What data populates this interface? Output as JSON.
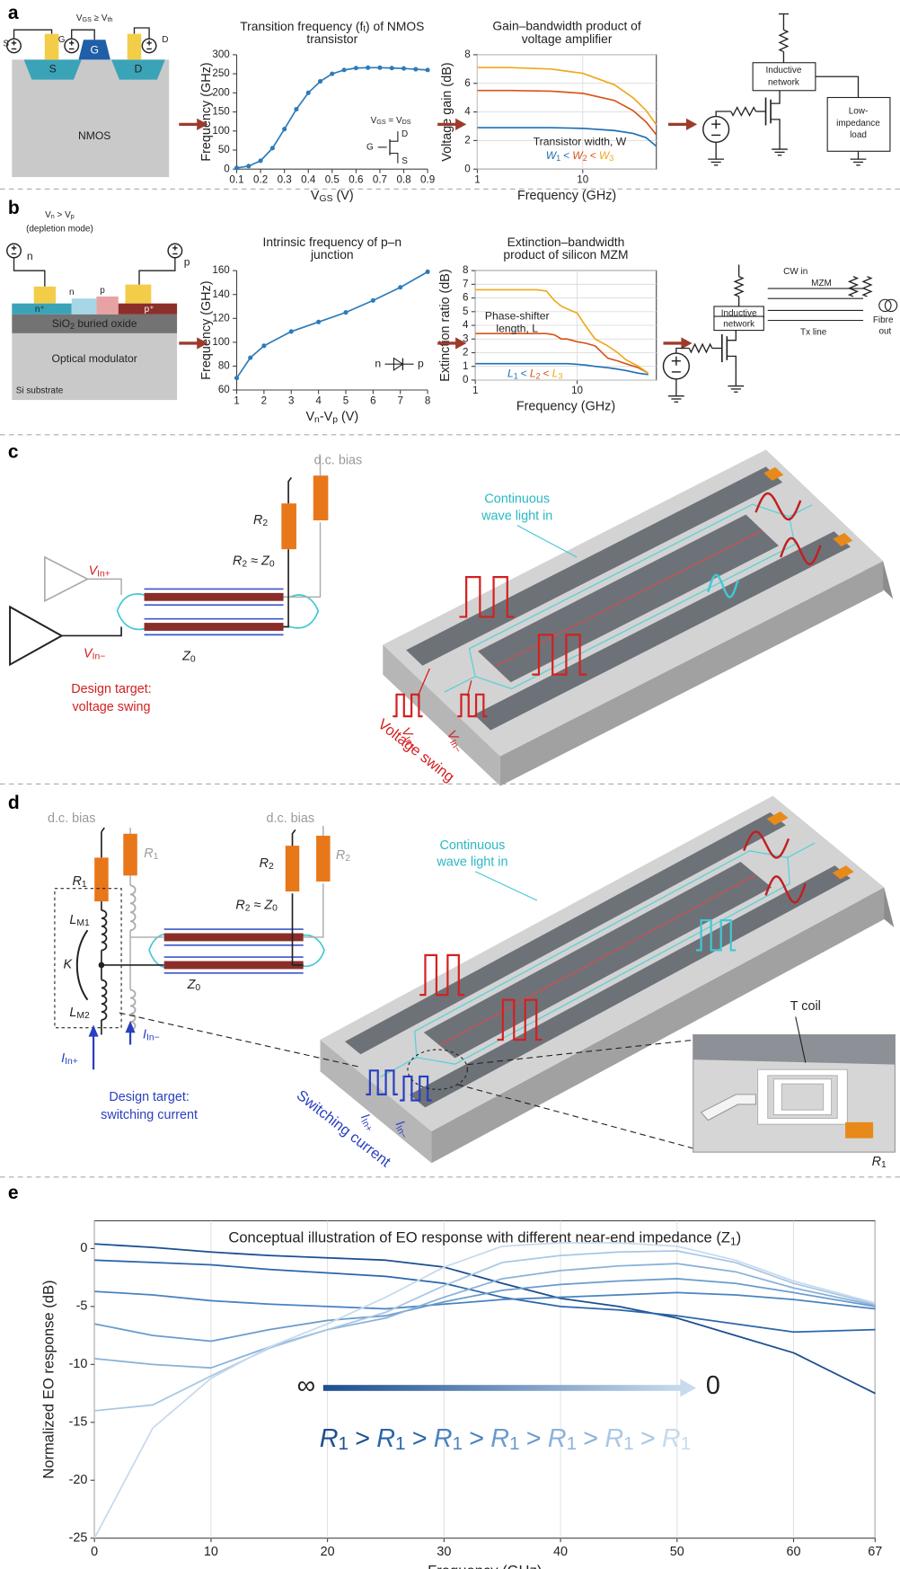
{
  "panel_labels": [
    "a",
    "b",
    "c",
    "d",
    "e"
  ],
  "chart_data": [
    {
      "type": "line",
      "title": [
        [
          "Transition frequency (f",
          "t",
          ") of NMOS"
        ],
        "transistor"
      ],
      "xlabel": [
        "V",
        "GS",
        " (V)"
      ],
      "ylabel": "Frequency (GHz)",
      "x": [
        0.1,
        0.15,
        0.2,
        0.25,
        0.3,
        0.35,
        0.4,
        0.45,
        0.5,
        0.55,
        0.6,
        0.65,
        0.7,
        0.75,
        0.8,
        0.85,
        0.9
      ],
      "values": [
        3,
        8,
        22,
        55,
        105,
        157,
        200,
        230,
        250,
        260,
        265,
        266,
        266,
        265,
        264,
        262,
        260
      ],
      "color": "#2b7bba",
      "markers": true,
      "xlim": [
        0.1,
        0.9
      ],
      "xticks": [
        0.1,
        0.2,
        0.3,
        0.4,
        0.5,
        0.6,
        0.7,
        0.8,
        0.9
      ],
      "ylim": [
        0,
        300
      ],
      "yticks": [
        0,
        50,
        100,
        150,
        200,
        250,
        300
      ],
      "annotations": [
        [
          "V",
          "GS",
          " = V",
          "DS"
        ],
        "D",
        "G",
        "S"
      ]
    },
    {
      "type": "line",
      "title": [
        "Gain–bandwidth product of",
        "voltage amplifier"
      ],
      "xlabel": "Frequency (GHz)",
      "ylabel": "Voltage gain (dB)",
      "xscale": "log",
      "x": [
        1,
        2,
        5,
        10,
        20,
        30,
        40,
        50
      ],
      "xlim": [
        1,
        50
      ],
      "xticks": [
        1,
        10
      ],
      "ylim": [
        0,
        8
      ],
      "yticks": [
        0,
        2,
        4,
        6,
        8
      ],
      "grid": true,
      "legend_title": "Transistor width, W",
      "legend_separator": "<",
      "series": [
        {
          "name": [
            "W",
            "1"
          ],
          "color": "#1f6fb5",
          "values": [
            2.9,
            2.9,
            2.9,
            2.85,
            2.7,
            2.5,
            2.2,
            1.6
          ]
        },
        {
          "name": [
            "W",
            "2"
          ],
          "color": "#d95319",
          "values": [
            5.5,
            5.5,
            5.45,
            5.3,
            4.8,
            4.1,
            3.3,
            2.4
          ]
        },
        {
          "name": [
            "W",
            "3"
          ],
          "color": "#f0a81c",
          "values": [
            7.1,
            7.1,
            7.0,
            6.7,
            5.9,
            5.0,
            4.1,
            3.1
          ]
        }
      ]
    },
    {
      "type": "line",
      "title": [
        "Intrinsic frequency of p–n",
        "junction"
      ],
      "xlabel": [
        "V",
        "n",
        "-V",
        "p",
        " (V)"
      ],
      "ylabel": "Frequency (GHz)",
      "x": [
        1,
        1.5,
        2,
        3,
        4,
        5,
        6,
        7,
        8
      ],
      "values": [
        70,
        87,
        97,
        109,
        117,
        125,
        135,
        146,
        159
      ],
      "color": "#2b7bba",
      "markers": true,
      "xlim": [
        1,
        8
      ],
      "xticks": [
        1,
        2,
        3,
        4,
        5,
        6,
        7,
        8
      ],
      "ylim": [
        60,
        160
      ],
      "yticks": [
        60,
        80,
        100,
        120,
        140,
        160
      ],
      "annotations": [
        "n",
        "p"
      ]
    },
    {
      "type": "line",
      "title": [
        "Extinction–bandwidth",
        "product of silicon MZM"
      ],
      "xlabel": "Frequency (GHz)",
      "ylabel": "Extinction ratio (dB)",
      "xscale": "log",
      "x": [
        1,
        2,
        3,
        4,
        5,
        6,
        7,
        8,
        10,
        12,
        15,
        20,
        25,
        30,
        40,
        50
      ],
      "xlim": [
        1,
        60
      ],
      "xticks": [
        1,
        10
      ],
      "ylim": [
        0,
        8
      ],
      "yticks": [
        0,
        1,
        2,
        3,
        4,
        5,
        6,
        7,
        8
      ],
      "grid": true,
      "legend_title": [
        "Phase-shifter",
        "length, L"
      ],
      "legend_separator": "<",
      "series": [
        {
          "name": [
            "L",
            "1"
          ],
          "color": "#1f6fb5",
          "values": [
            1.2,
            1.2,
            1.2,
            1.2,
            1.2,
            1.2,
            1.2,
            1.2,
            1.15,
            1.1,
            1.0,
            0.9,
            0.8,
            0.7,
            0.5,
            0.4
          ]
        },
        {
          "name": [
            "L",
            "2"
          ],
          "color": "#d95319",
          "values": [
            3.4,
            3.4,
            3.4,
            3.4,
            3.4,
            3.3,
            3.0,
            3.0,
            2.8,
            2.7,
            2.5,
            1.6,
            1.4,
            1.2,
            0.9,
            0.5
          ]
        },
        {
          "name": [
            "L",
            "3"
          ],
          "color": "#f0a81c",
          "values": [
            6.6,
            6.6,
            6.6,
            6.6,
            6.5,
            5.8,
            5.4,
            5.2,
            4.9,
            4.0,
            3.0,
            2.5,
            2.0,
            1.5,
            1.0,
            0.5
          ]
        }
      ]
    },
    {
      "type": "line",
      "title": [
        [
          "Conceptual illustration of EO response with different near-end impedance (Z",
          "1",
          ")"
        ]
      ],
      "xlabel": "Frequency (GHz)",
      "ylabel": "Normalized EO response (dB)",
      "x": [
        0,
        5,
        10,
        15,
        20,
        25,
        30,
        35,
        40,
        45,
        50,
        55,
        60,
        67
      ],
      "xlim": [
        0,
        67
      ],
      "xticks": [
        0,
        10,
        20,
        30,
        40,
        50,
        60,
        67
      ],
      "ylim": [
        -25,
        2.4
      ],
      "yticks": [
        -25,
        -20,
        -15,
        -10,
        -5,
        0
      ],
      "grid": "x",
      "legend_separator": ">",
      "annotations": [
        "∞",
        "0"
      ],
      "series": [
        {
          "name": [
            "R",
            "1"
          ],
          "color": "#1c4f8f",
          "values": [
            0.4,
            0.1,
            -0.3,
            -0.6,
            -0.8,
            -1.0,
            -1.6,
            -3.0,
            -4.3,
            -5.0,
            -6.0,
            -7.5,
            -9.0,
            -12.5
          ]
        },
        {
          "name": [
            "R",
            "1"
          ],
          "color": "#2a66aa",
          "values": [
            -1.0,
            -1.2,
            -1.4,
            -1.8,
            -2.1,
            -2.4,
            -3.0,
            -4.2,
            -5.0,
            -5.3,
            -5.8,
            -6.5,
            -7.2,
            -7.0
          ]
        },
        {
          "name": [
            "R",
            "1"
          ],
          "color": "#4a82bf",
          "values": [
            -3.7,
            -4.0,
            -4.5,
            -4.8,
            -5.0,
            -5.2,
            -4.8,
            -4.4,
            -4.2,
            -4.0,
            -3.8,
            -4.0,
            -4.4,
            -5.2
          ]
        },
        {
          "name": [
            "R",
            "1"
          ],
          "color": "#6a9bcc",
          "values": [
            -6.5,
            -7.5,
            -8.0,
            -7.0,
            -6.2,
            -5.8,
            -4.6,
            -3.6,
            -3.1,
            -2.8,
            -2.6,
            -3.0,
            -3.8,
            -5.0
          ]
        },
        {
          "name": [
            "R",
            "1"
          ],
          "color": "#8ab2d9",
          "values": [
            -9.5,
            -10.0,
            -10.3,
            -8.5,
            -7.0,
            -6.0,
            -4.2,
            -2.6,
            -1.9,
            -1.5,
            -1.3,
            -2.0,
            -3.4,
            -4.9
          ]
        },
        {
          "name": [
            "R",
            "1"
          ],
          "color": "#a9c7e4",
          "values": [
            -14.0,
            -13.5,
            -11.0,
            -8.6,
            -7.0,
            -5.5,
            -3.2,
            -1.2,
            -0.6,
            -0.3,
            -0.2,
            -1.2,
            -3.0,
            -4.8
          ]
        },
        {
          "name": [
            "R",
            "1"
          ],
          "color": "#c7daee",
          "values": [
            -25.0,
            -15.5,
            -11.2,
            -8.5,
            -6.5,
            -4.2,
            -1.6,
            0.2,
            0.5,
            0.5,
            0.2,
            -1.0,
            -2.8,
            -4.7
          ]
        }
      ]
    }
  ],
  "panel_a": {
    "condition": [
      "V",
      "GS",
      " ≥ V",
      "th"
    ],
    "terminals": [
      "S",
      "G",
      "D"
    ],
    "device": "NMOS",
    "inductive_network": [
      "Inductive",
      "network"
    ],
    "load": [
      "Low-",
      "impedance",
      "load"
    ]
  },
  "panel_b": {
    "condition": [
      "V",
      "n",
      " > V",
      "p"
    ],
    "mode": "(depletion mode)",
    "terminals": [
      "n",
      "p"
    ],
    "doping": [
      "n⁺",
      "n",
      "p",
      "p⁺"
    ],
    "oxide": [
      "SiO",
      "2",
      " buried oxide"
    ],
    "modulator": "Optical modulator",
    "substrate": "Si substrate",
    "cw_in": "CW in",
    "mzm": "MZM",
    "tx_line": "Tx line",
    "inductive_network": [
      "Inductive",
      "network"
    ],
    "fibre_out": [
      "Fibre",
      "out"
    ]
  },
  "panel_c": {
    "dc_bias": "d.c. bias",
    "r2": [
      "R",
      "2"
    ],
    "match": [
      "R",
      "2",
      " ≈ Z",
      "0"
    ],
    "v_in_plus": [
      "V",
      "In+"
    ],
    "v_in_minus": [
      "V",
      "In−"
    ],
    "z0": [
      "Z",
      "0"
    ],
    "target": [
      "Design target:",
      "voltage swing"
    ],
    "light": [
      "Continuous",
      "wave light in"
    ],
    "swing": "Voltage swing"
  },
  "panel_d": {
    "dc_bias": "d.c. bias",
    "r1": [
      "R",
      "1"
    ],
    "r2": [
      "R",
      "2"
    ],
    "match": [
      "R",
      "2",
      " ≈ Z",
      "0"
    ],
    "l_m1": [
      "L",
      "M1"
    ],
    "k": "K",
    "l_m2": [
      "L",
      "M2"
    ],
    "i_in_plus": [
      "I",
      "In+"
    ],
    "i_in_minus": [
      "I",
      "In−"
    ],
    "z0": [
      "Z",
      "0"
    ],
    "target": [
      "Design target:",
      "switching current"
    ],
    "light": [
      "Continuous",
      "wave light in"
    ],
    "t_coil": "T coil",
    "swing": "Switching current"
  }
}
